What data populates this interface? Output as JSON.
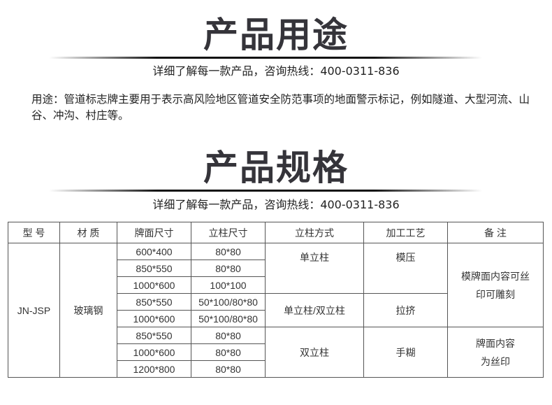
{
  "usage": {
    "title": "产品用途",
    "hotline": "详细了解每一款产品，咨询热线：400-0311-836",
    "description": "用途：管道标志牌主要用于表示高风险地区管道安全防范事项的地面警示标记，例如隧道、大型河流、山谷、冲沟、村庄等。"
  },
  "spec": {
    "title": "产品规格",
    "hotline": "详细了解每一款产品，咨询热线：400-0311-836"
  },
  "table": {
    "headers": [
      "型 号",
      "材 质",
      "牌面尺寸",
      "立柱尺寸",
      "立柱方式",
      "加工工艺",
      "备 注"
    ],
    "model": "JN-JSP",
    "material": "玻璃钢",
    "rows": [
      [
        "600*400",
        "80*80"
      ],
      [
        "850*550",
        "80*80"
      ],
      [
        "1000*600",
        "100*100"
      ],
      [
        "850*550",
        "50*100/80*80"
      ],
      [
        "1000*600",
        "50*100/80*80"
      ],
      [
        "850*550",
        "80*80"
      ],
      [
        "1000*600",
        "80*80"
      ],
      [
        "1200*800",
        "80*80"
      ]
    ],
    "groups": [
      {
        "mount": "单立柱",
        "process": "模压"
      },
      {
        "mount": "单立柱/双立柱",
        "process": "拉挤"
      },
      {
        "mount": "双立柱",
        "process": "手糊"
      }
    ],
    "notes": [
      "模牌面内容可丝印可雕刻",
      "牌面内容为丝印"
    ]
  }
}
